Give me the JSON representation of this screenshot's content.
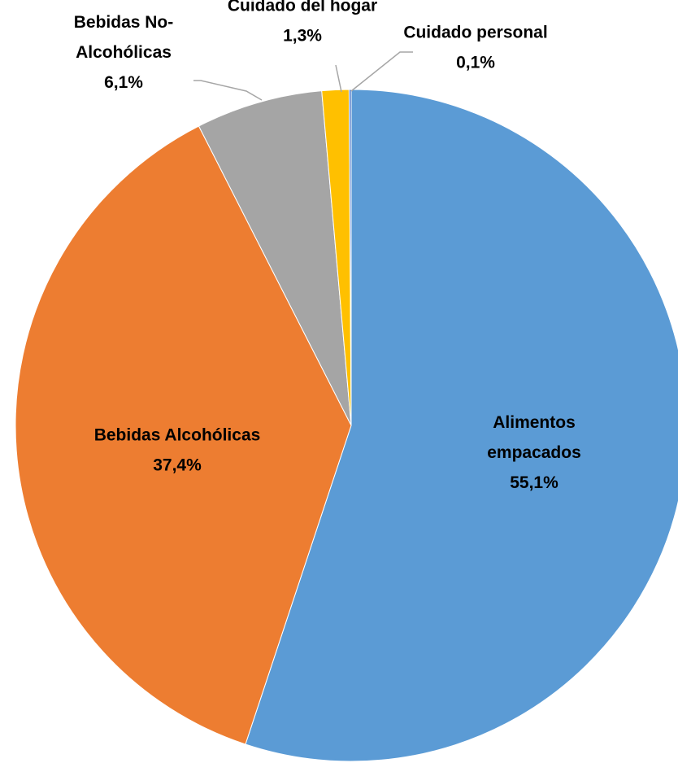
{
  "chart_data": {
    "type": "pie",
    "title": "",
    "slices": [
      {
        "name": "Alimentos empacados",
        "label_lines": [
          "Alimentos",
          "empacados"
        ],
        "value": 55.1,
        "value_label": "55,1%",
        "color": "#5b9bd5"
      },
      {
        "name": "Bebidas Alcohólicas",
        "label_lines": [
          "Bebidas Alcohólicas"
        ],
        "value": 37.4,
        "value_label": "37,4%",
        "color": "#ed7d31"
      },
      {
        "name": "Bebidas No-Alcohólicas",
        "label_lines": [
          "Bebidas No-",
          "Alcohólicas"
        ],
        "value": 6.1,
        "value_label": "6,1%",
        "color": "#a5a5a5"
      },
      {
        "name": "Cuidado del hogar",
        "label_lines": [
          "Cuidado del hogar"
        ],
        "value": 1.3,
        "value_label": "1,3%",
        "color": "#ffc000"
      },
      {
        "name": "Cuidado personal",
        "label_lines": [
          "Cuidado personal"
        ],
        "value": 0.1,
        "value_label": "0,1%",
        "color": "#4472c4"
      }
    ],
    "start_angle": "12 o'clock",
    "direction": "clockwise",
    "legend": "none"
  }
}
